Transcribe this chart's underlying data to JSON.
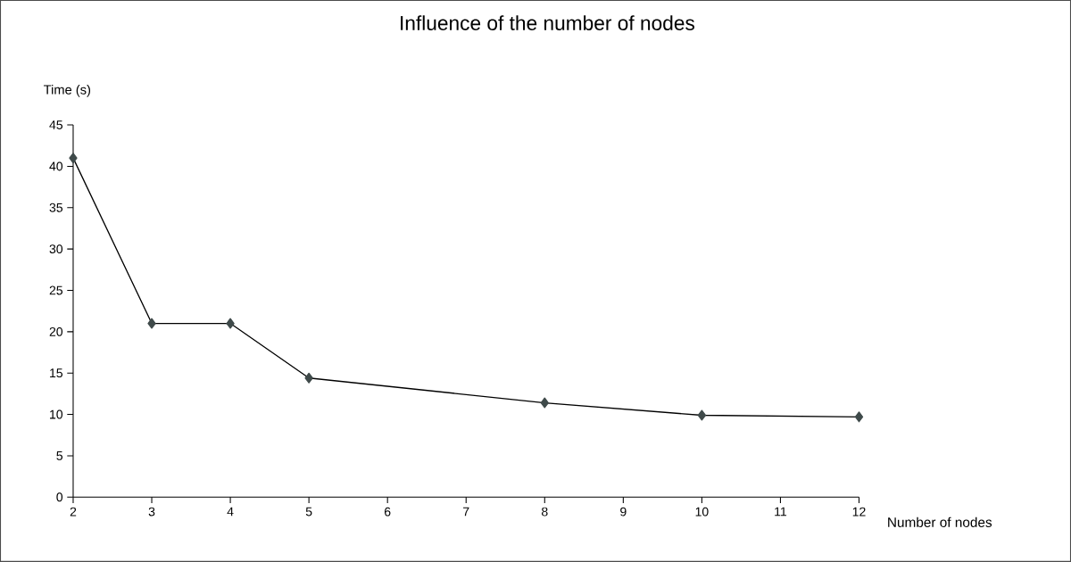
{
  "chart_data": {
    "type": "line",
    "title": "Influence of the number of nodes",
    "xlabel": "Number of nodes",
    "ylabel": "Time (s)",
    "x": [
      2,
      3,
      4,
      5,
      8,
      10,
      12
    ],
    "series": [
      {
        "color": "#3f4a4a",
        "values": [
          41,
          21,
          21,
          14.4,
          11.4,
          9.9,
          9.7
        ]
      }
    ],
    "xlim": [
      2,
      12
    ],
    "xticks": [
      2,
      3,
      4,
      5,
      6,
      7,
      8,
      9,
      10,
      11,
      12
    ],
    "ylim": [
      0,
      45
    ],
    "yticks": [
      0,
      5,
      10,
      15,
      20,
      25,
      30,
      35,
      40,
      45
    ],
    "grid": false,
    "marker": "diamond",
    "line_style": "solid"
  }
}
